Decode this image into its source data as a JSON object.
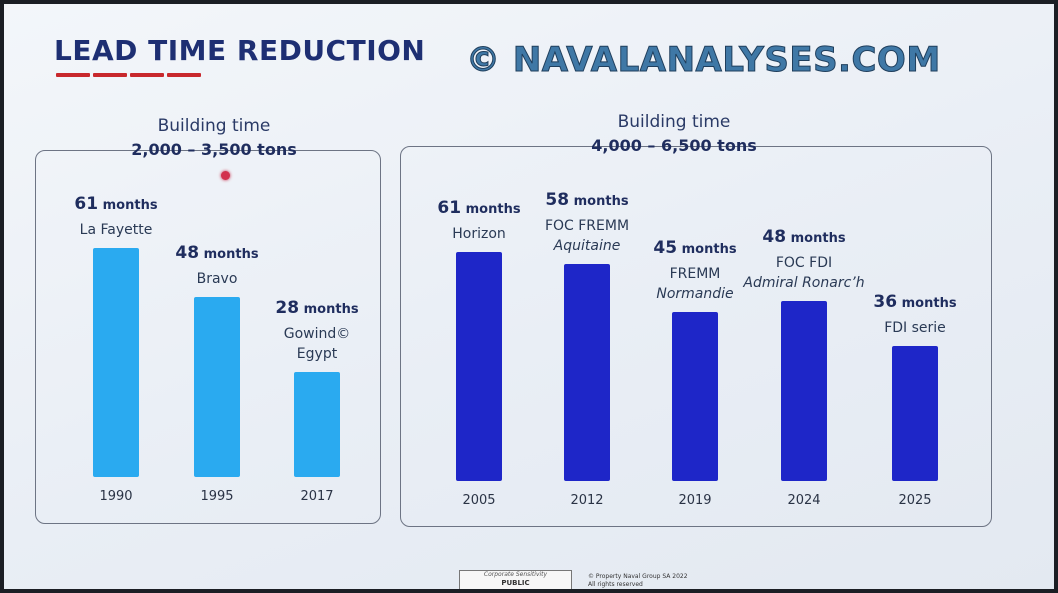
{
  "slide": {
    "title": "LEAD TIME REDUCTION",
    "watermark": "© NAVALANALYSES.COM",
    "footer": {
      "sensitivity_label": "Corporate Sensitivity",
      "sensitivity_value": "PUBLIC",
      "copyright_line1": "© Property Naval Group SA 2022",
      "copyright_line2": "All rights reserved"
    }
  },
  "colors": {
    "title": "#1e2f73",
    "accent_red": "#c8282d",
    "light_bar": "#2aaaf0",
    "dark_bar": "#1e26c8"
  },
  "chart_data": [
    {
      "type": "bar",
      "title": "Building time",
      "subtitle": "2,000 – 3,500 tons",
      "unit": "months",
      "ylim": [
        0,
        70
      ],
      "grid": false,
      "color": "#2aaaf0",
      "categories": [
        "1990",
        "1995",
        "2017"
      ],
      "series": [
        {
          "values": [
            61,
            48,
            28
          ],
          "labels": [
            {
              "name": "La Fayette",
              "sub": ""
            },
            {
              "name": "Bravo",
              "sub": ""
            },
            {
              "name": "Gowind©",
              "sub": "Egypt"
            }
          ]
        }
      ]
    },
    {
      "type": "bar",
      "title": "Building time",
      "subtitle": "4,000 – 6,500 tons",
      "unit": "months",
      "ylim": [
        0,
        70
      ],
      "grid": false,
      "color": "#1e26c8",
      "categories": [
        "2005",
        "2012",
        "2019",
        "2024",
        "2025"
      ],
      "series": [
        {
          "values": [
            61,
            58,
            45,
            48,
            36
          ],
          "labels": [
            {
              "name": "Horizon",
              "sub": ""
            },
            {
              "name": "FOC FREMM",
              "sub": "Aquitaine"
            },
            {
              "name": "FREMM",
              "sub": "Normandie"
            },
            {
              "name": "FOC FDI",
              "sub": "Admiral Ronarc’h"
            },
            {
              "name": "FDI serie",
              "sub": ""
            }
          ]
        }
      ]
    }
  ]
}
